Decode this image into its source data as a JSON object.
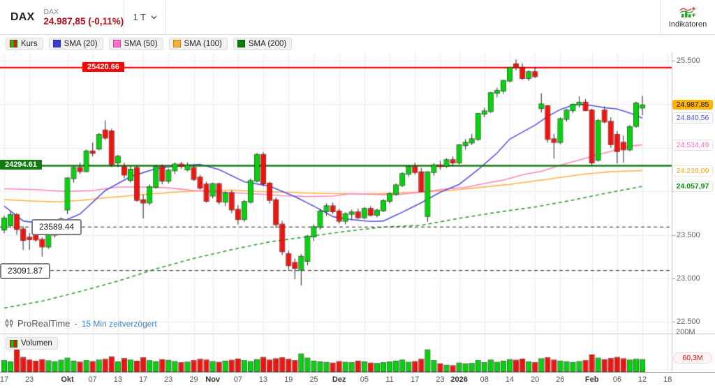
{
  "header": {
    "symbol": "DAX",
    "instrument": "DAX",
    "quote": "24.987,85 (-0,11%)",
    "timeframe": "1 T",
    "indicators_label": "Indikatoren"
  },
  "legend": [
    {
      "label": "Kurs",
      "type": "price",
      "colors": [
        "#00cc00",
        "#ee1111"
      ]
    },
    {
      "label": "SMA (20)",
      "color": "#3a3ad6"
    },
    {
      "label": "SMA (50)",
      "color": "#ff6ec7"
    },
    {
      "label": "SMA (100)",
      "color": "#ffb131"
    },
    {
      "label": "SMA (200)",
      "color": "#067d06"
    }
  ],
  "volume_legend": "Volumen",
  "attribution": {
    "brand": "ProRealTime",
    "sep": "-",
    "delay": "15 Min zeitverzögert"
  },
  "levels": {
    "resistance": {
      "label": "25420.66",
      "price": 25420.66,
      "color": "#fa0606"
    },
    "support": {
      "label": "24294.61",
      "price": 24294.61,
      "color": "#127a12"
    },
    "swing_high": {
      "label": "23589.44",
      "price": 23589.44
    },
    "swing_low": {
      "label": "23091.87",
      "price": 23091.87
    }
  },
  "right_axis": {
    "ticks": [
      {
        "price": 25500,
        "label": "25.500"
      },
      {
        "price": 23500,
        "label": "23.500"
      },
      {
        "price": 23000,
        "label": "23.000"
      },
      {
        "price": 22500,
        "label": "22.500"
      }
    ],
    "badges": {
      "last": {
        "label": "24.987,85",
        "price": 24987.85,
        "bg": "#ffb400",
        "fg": "#111"
      },
      "sma20": {
        "label": "24.840,56",
        "price": 24840.56,
        "fg": "#5050e0"
      },
      "sma50": {
        "label": "24.534,49",
        "price": 24534.49,
        "fg": "#ff70c0"
      },
      "sma100": {
        "label": "24.239,09",
        "price": 24239.09,
        "fg": "#ffa726"
      },
      "sma200": {
        "label": "24.057,97",
        "price": 24057.97,
        "fg": "#0a8a0a"
      }
    },
    "volume_max": "200M",
    "volume_last": {
      "label": "60,3M",
      "value": 60.3
    }
  },
  "chart_data": {
    "type": "candlestick+volume",
    "timeframe": "daily",
    "x_labels": [
      {
        "i": 0,
        "t": "17"
      },
      {
        "i": 4,
        "t": "23"
      },
      {
        "i": 10,
        "t": "Okt",
        "b": true
      },
      {
        "i": 14,
        "t": "07"
      },
      {
        "i": 18,
        "t": "13"
      },
      {
        "i": 22,
        "t": "17"
      },
      {
        "i": 26,
        "t": "23"
      },
      {
        "i": 30,
        "t": "29"
      },
      {
        "i": 33,
        "t": "Nov",
        "b": true
      },
      {
        "i": 37,
        "t": "07"
      },
      {
        "i": 41,
        "t": "13"
      },
      {
        "i": 45,
        "t": "19"
      },
      {
        "i": 49,
        "t": "25"
      },
      {
        "i": 53,
        "t": "Dez",
        "b": true
      },
      {
        "i": 57,
        "t": "05"
      },
      {
        "i": 61,
        "t": "11"
      },
      {
        "i": 65,
        "t": "17"
      },
      {
        "i": 69,
        "t": "23"
      },
      {
        "i": 72,
        "t": "2026",
        "b": true
      },
      {
        "i": 76,
        "t": "08"
      },
      {
        "i": 80,
        "t": "14"
      },
      {
        "i": 84,
        "t": "20"
      },
      {
        "i": 88,
        "t": "26"
      },
      {
        "i": 93,
        "t": "Feb",
        "b": true
      },
      {
        "i": 97,
        "t": "06"
      },
      {
        "i": 101,
        "t": "12"
      },
      {
        "i": 105,
        "t": "18"
      }
    ],
    "price_gridlines": [
      25500,
      25000,
      24500,
      24000,
      23500,
      23000,
      22500
    ],
    "ylim_volume": [
      0,
      200
    ],
    "candles": [
      [
        23560,
        23720,
        23520,
        23690
      ],
      [
        23610,
        23770,
        23580,
        23730
      ],
      [
        23730,
        23750,
        23500,
        23565
      ],
      [
        23565,
        23600,
        23330,
        23440
      ],
      [
        23470,
        23520,
        23330,
        23450
      ],
      [
        23525,
        23560,
        23420,
        23445
      ],
      [
        23445,
        23470,
        23250,
        23365
      ],
      [
        23365,
        23520,
        23340,
        23500
      ],
      [
        23500,
        23620,
        23470,
        23600
      ],
      [
        23600,
        23700,
        23560,
        23680
      ],
      [
        23790,
        24160,
        23740,
        24150
      ],
      [
        24150,
        24290,
        24100,
        24270
      ],
      [
        24270,
        24330,
        24200,
        24230
      ],
      [
        24230,
        24480,
        24220,
        24460
      ],
      [
        24460,
        24560,
        24400,
        24440
      ],
      [
        24490,
        24670,
        24470,
        24650
      ],
      [
        24700,
        24815,
        24590,
        24615
      ],
      [
        24690,
        24720,
        24280,
        24310
      ],
      [
        24330,
        24420,
        24280,
        24400
      ],
      [
        24280,
        24330,
        24150,
        24190
      ],
      [
        24130,
        24290,
        24100,
        24250
      ],
      [
        24270,
        24300,
        23880,
        23900
      ],
      [
        23900,
        23960,
        23690,
        23870
      ],
      [
        23870,
        24080,
        23840,
        24050
      ],
      [
        24050,
        24300,
        24030,
        24280
      ],
      [
        24280,
        24310,
        24080,
        24120
      ],
      [
        24120,
        24260,
        24090,
        24240
      ],
      [
        24240,
        24330,
        24200,
        24310
      ],
      [
        24310,
        24340,
        24260,
        24290
      ],
      [
        24250,
        24330,
        24230,
        24300
      ],
      [
        24270,
        24300,
        24120,
        24140
      ],
      [
        24160,
        24190,
        24020,
        24040
      ],
      [
        24080,
        24110,
        23870,
        23890
      ],
      [
        23950,
        24100,
        23920,
        24085
      ],
      [
        24085,
        24100,
        23850,
        23880
      ],
      [
        23880,
        24000,
        23830,
        23980
      ],
      [
        23980,
        24010,
        23750,
        23790
      ],
      [
        23790,
        23840,
        23620,
        23680
      ],
      [
        23680,
        23900,
        23650,
        23880
      ],
      [
        23880,
        24150,
        23860,
        24120
      ],
      [
        24120,
        24440,
        24100,
        24420
      ],
      [
        24420,
        24450,
        24060,
        24090
      ],
      [
        24090,
        24110,
        23860,
        23900
      ],
      [
        23900,
        23930,
        23580,
        23620
      ],
      [
        23620,
        23660,
        23270,
        23310
      ],
      [
        23280,
        23320,
        23090,
        23150
      ],
      [
        23180,
        23230,
        22990,
        23120
      ],
      [
        23100,
        23280,
        22920,
        23250
      ],
      [
        23200,
        23500,
        23150,
        23480
      ],
      [
        23480,
        23620,
        23430,
        23590
      ],
      [
        23590,
        23800,
        23560,
        23770
      ],
      [
        23770,
        23860,
        23720,
        23830
      ],
      [
        23830,
        23870,
        23740,
        23770
      ],
      [
        23770,
        23800,
        23630,
        23660
      ],
      [
        23660,
        23760,
        23620,
        23740
      ],
      [
        23740,
        23790,
        23670,
        23760
      ],
      [
        23760,
        23800,
        23680,
        23700
      ],
      [
        23700,
        23820,
        23680,
        23800
      ],
      [
        23800,
        23830,
        23710,
        23730
      ],
      [
        23730,
        23800,
        23700,
        23780
      ],
      [
        23780,
        23910,
        23760,
        23890
      ],
      [
        23890,
        23990,
        23860,
        23970
      ],
      [
        23970,
        24090,
        23950,
        24070
      ],
      [
        24070,
        24220,
        24050,
        24200
      ],
      [
        24200,
        24300,
        24170,
        24280
      ],
      [
        24280,
        24330,
        24190,
        24220
      ],
      [
        24220,
        24270,
        23990,
        24000
      ],
      [
        23715,
        24230,
        23650,
        24220
      ],
      [
        24220,
        24320,
        24180,
        24300
      ],
      [
        24300,
        24350,
        24250,
        24290
      ],
      [
        24290,
        24380,
        24270,
        24360
      ],
      [
        24360,
        24400,
        24290,
        24330
      ],
      [
        24330,
        24540,
        24310,
        24530
      ],
      [
        24530,
        24600,
        24480,
        24560
      ],
      [
        24560,
        24660,
        24530,
        24600
      ],
      [
        24600,
        24900,
        24580,
        24890
      ],
      [
        24890,
        24960,
        24850,
        24920
      ],
      [
        24920,
        25140,
        24900,
        25130
      ],
      [
        25130,
        25190,
        25080,
        25155
      ],
      [
        25155,
        25280,
        25120,
        25270
      ],
      [
        25270,
        25430,
        25250,
        25420
      ],
      [
        25460,
        25516,
        25390,
        25420
      ],
      [
        25420,
        25470,
        25280,
        25300
      ],
      [
        25300,
        25390,
        25270,
        25370
      ],
      [
        25370,
        25425,
        25300,
        25320
      ],
      [
        24955,
        25125,
        24905,
        25000
      ],
      [
        24980,
        24990,
        24560,
        24600
      ],
      [
        24600,
        24660,
        24375,
        24565
      ],
      [
        24565,
        24850,
        24540,
        24830
      ],
      [
        24830,
        24950,
        24800,
        24930
      ],
      [
        24930,
        25010,
        24900,
        24995
      ],
      [
        24995,
        25090,
        24960,
        25020
      ],
      [
        25020,
        25060,
        24920,
        24930
      ],
      [
        24930,
        24950,
        24295,
        24330
      ],
      [
        24360,
        24830,
        24340,
        24810
      ],
      [
        24930,
        24975,
        24780,
        24800
      ],
      [
        24800,
        24850,
        24500,
        24540
      ],
      [
        24650,
        24690,
        24320,
        24460
      ],
      [
        24560,
        24640,
        24330,
        24480
      ],
      [
        24480,
        24760,
        24460,
        24740
      ],
      [
        24750,
        25030,
        24730,
        25010
      ],
      [
        24960,
        25095,
        24875,
        24988
      ]
    ],
    "volumes": [
      55,
      48,
      115,
      72,
      58,
      52,
      60,
      54,
      49,
      57,
      68,
      52,
      47,
      55,
      50,
      58,
      62,
      75,
      48,
      66,
      58,
      52,
      70,
      55,
      49,
      60,
      56,
      50,
      44,
      47,
      55,
      62,
      58,
      50,
      46,
      52,
      57,
      63,
      55,
      50,
      60,
      72,
      58,
      65,
      70,
      62,
      55,
      90,
      68,
      52,
      48,
      45,
      42,
      50,
      46,
      44,
      52,
      48,
      42,
      40,
      44,
      48,
      52,
      58,
      46,
      50,
      62,
      112,
      55,
      38,
      30,
      28,
      42,
      38,
      40,
      55,
      44,
      58,
      46,
      52,
      60,
      57,
      63,
      48,
      44,
      65,
      70,
      58,
      52,
      48,
      45,
      50,
      55,
      85,
      68,
      60,
      66,
      72,
      65,
      58,
      62,
      60.3
    ],
    "sma": {
      "sma20": {
        "period": 20,
        "color": "#5353e8",
        "points": [
          [
            0,
            23830
          ],
          [
            3,
            23660
          ],
          [
            6,
            23630
          ],
          [
            9,
            23650
          ],
          [
            12,
            23740
          ],
          [
            16,
            24010
          ],
          [
            20,
            24170
          ],
          [
            24,
            24260
          ],
          [
            27,
            24290
          ],
          [
            31,
            24310
          ],
          [
            34,
            24250
          ],
          [
            38,
            24110
          ],
          [
            42,
            24060
          ],
          [
            46,
            23940
          ],
          [
            49,
            23830
          ],
          [
            52,
            23710
          ],
          [
            55,
            23675
          ],
          [
            58,
            23655
          ],
          [
            60,
            23660
          ],
          [
            63,
            23760
          ],
          [
            66,
            23870
          ],
          [
            69,
            23990
          ],
          [
            72,
            24080
          ],
          [
            75,
            24250
          ],
          [
            78,
            24440
          ],
          [
            80,
            24600
          ],
          [
            82,
            24680
          ],
          [
            84,
            24760
          ],
          [
            86,
            24860
          ],
          [
            88,
            24940
          ],
          [
            90,
            24990
          ],
          [
            91,
            25000
          ],
          [
            93,
            24985
          ],
          [
            95,
            24960
          ],
          [
            97,
            24945
          ],
          [
            99,
            24900
          ],
          [
            101,
            24840.56
          ]
        ]
      },
      "sma50": {
        "period": 50,
        "color": "#ff85c2",
        "points": [
          [
            0,
            24030
          ],
          [
            5,
            24020
          ],
          [
            10,
            24000
          ],
          [
            14,
            24010
          ],
          [
            18,
            24050
          ],
          [
            22,
            24050
          ],
          [
            26,
            24040
          ],
          [
            30,
            24010
          ],
          [
            33,
            23995
          ],
          [
            36,
            23985
          ],
          [
            40,
            23970
          ],
          [
            44,
            23950
          ],
          [
            48,
            23940
          ],
          [
            52,
            23945
          ],
          [
            55,
            23975
          ],
          [
            58,
            23965
          ],
          [
            62,
            23960
          ],
          [
            66,
            23990
          ],
          [
            70,
            24030
          ],
          [
            73,
            24045
          ],
          [
            76,
            24090
          ],
          [
            79,
            24130
          ],
          [
            82,
            24190
          ],
          [
            85,
            24230
          ],
          [
            88,
            24300
          ],
          [
            91,
            24360
          ],
          [
            94,
            24420
          ],
          [
            97,
            24480
          ],
          [
            99,
            24520
          ],
          [
            101,
            24534.49
          ]
        ]
      },
      "sma100": {
        "period": 100,
        "color": "#ffb347",
        "points": [
          [
            0,
            23905
          ],
          [
            4,
            23890
          ],
          [
            8,
            23880
          ],
          [
            12,
            23895
          ],
          [
            16,
            23925
          ],
          [
            20,
            23950
          ],
          [
            24,
            23975
          ],
          [
            28,
            23995
          ],
          [
            32,
            24010
          ],
          [
            36,
            24015
          ],
          [
            40,
            24000
          ],
          [
            44,
            23990
          ],
          [
            48,
            23980
          ],
          [
            52,
            23975
          ],
          [
            56,
            23970
          ],
          [
            60,
            23975
          ],
          [
            64,
            23985
          ],
          [
            68,
            24000
          ],
          [
            72,
            24020
          ],
          [
            76,
            24050
          ],
          [
            80,
            24080
          ],
          [
            84,
            24120
          ],
          [
            88,
            24160
          ],
          [
            92,
            24200
          ],
          [
            96,
            24225
          ],
          [
            101,
            24239.09
          ]
        ]
      },
      "sma200": {
        "period": 200,
        "color": "#2e9e2e",
        "dashed": true,
        "points": [
          [
            0,
            22660
          ],
          [
            6,
            22740
          ],
          [
            12,
            22850
          ],
          [
            18,
            22970
          ],
          [
            24,
            23110
          ],
          [
            30,
            23230
          ],
          [
            36,
            23330
          ],
          [
            42,
            23420
          ],
          [
            48,
            23480
          ],
          [
            54,
            23540
          ],
          [
            60,
            23590
          ],
          [
            66,
            23610
          ],
          [
            72,
            23690
          ],
          [
            78,
            23760
          ],
          [
            84,
            23820
          ],
          [
            90,
            23900
          ],
          [
            95,
            23975
          ],
          [
            101,
            24057.97
          ]
        ]
      }
    },
    "candle_colors": {
      "up": "#00d50a",
      "down": "#f2120c"
    }
  }
}
